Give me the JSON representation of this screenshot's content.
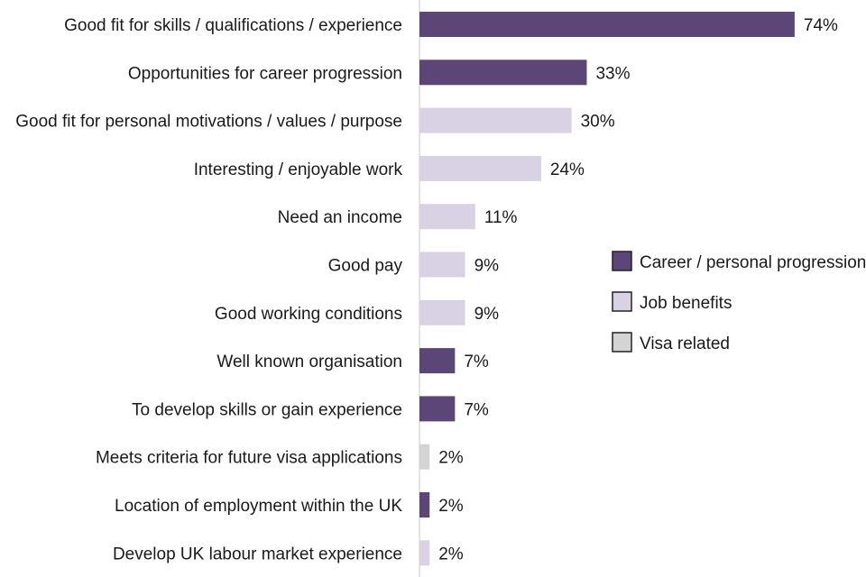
{
  "chart_data": {
    "type": "bar",
    "orientation": "horizontal",
    "categories": [
      "Good fit for skills / qualifications / experience",
      "Opportunities for career progression",
      "Good fit for personal motivations / values / purpose",
      "Interesting / enjoyable work",
      "Need an income",
      "Good pay",
      "Good working conditions",
      "Well known organisation",
      "To develop skills or gain experience",
      "Meets criteria for future visa applications",
      "Location of employment within the UK",
      "Develop UK labour market experience"
    ],
    "values": [
      74,
      33,
      30,
      24,
      11,
      9,
      9,
      7,
      7,
      2,
      2,
      2
    ],
    "value_labels": [
      "74%",
      "33%",
      "30%",
      "24%",
      "11%",
      "9%",
      "9%",
      "7%",
      "7%",
      "2%",
      "2%",
      "2%"
    ],
    "groups": [
      "Career / personal progression",
      "Career / personal progression",
      "Job benefits",
      "Job benefits",
      "Job benefits",
      "Job benefits",
      "Job benefits",
      "Career / personal progression",
      "Career / personal progression",
      "Visa related",
      "Career / personal progression",
      "Job benefits"
    ],
    "legend": [
      {
        "name": "Career / personal progression",
        "color": "#5b4677"
      },
      {
        "name": "Job benefits",
        "color": "#d9d1e4"
      },
      {
        "name": "Visa related",
        "color": "#d4d4d4"
      }
    ],
    "legend_position": "right",
    "unit": "%",
    "xlim": [
      0,
      80
    ],
    "title": "",
    "xlabel": "",
    "ylabel": "",
    "grid": false
  }
}
